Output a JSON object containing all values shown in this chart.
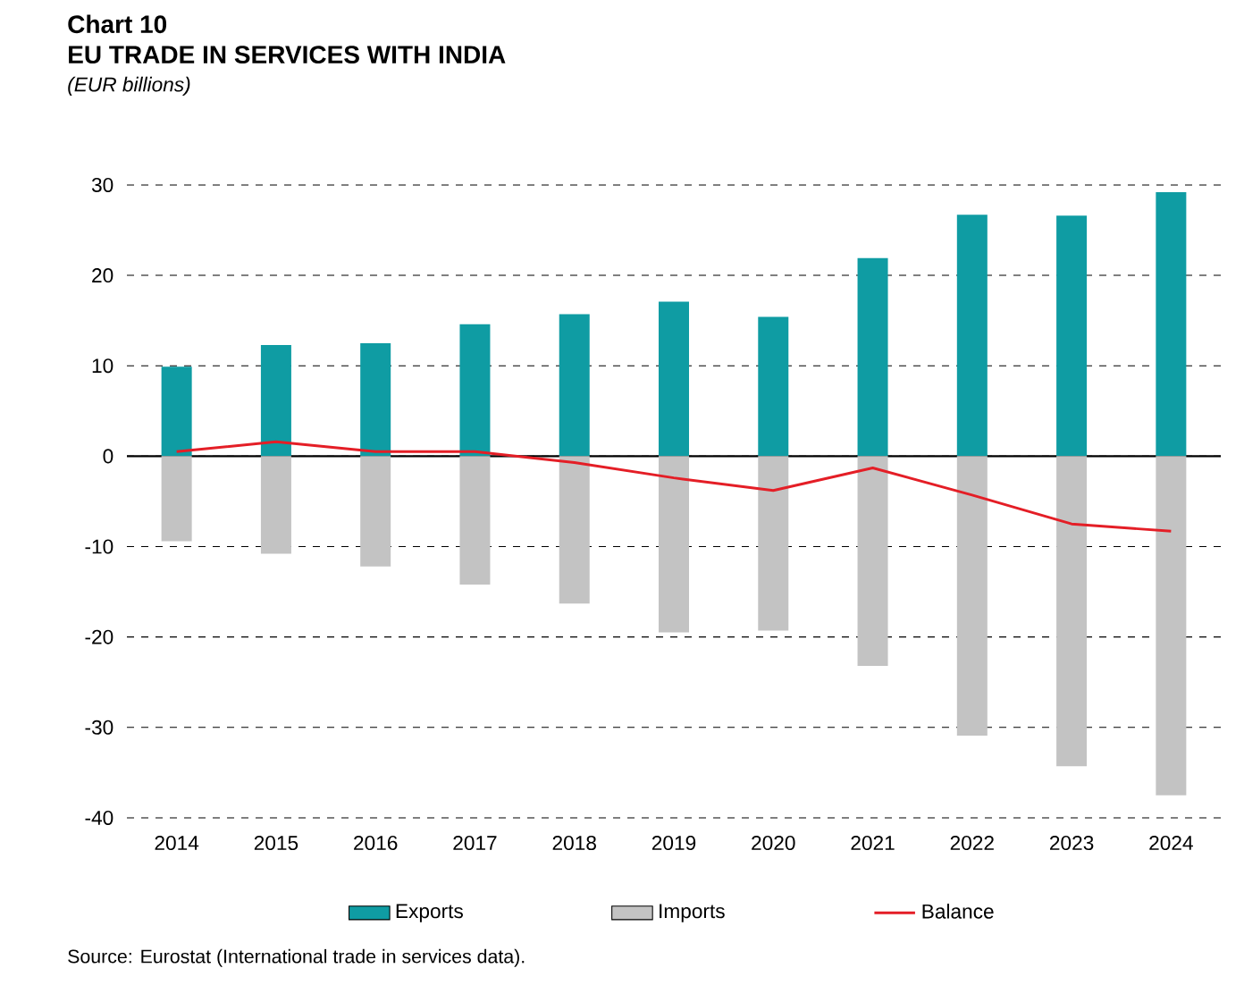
{
  "chart_data": {
    "type": "bar",
    "title": "Chart 10",
    "subtitle": "EU TRADE IN SERVICES WITH INDIA",
    "stacked": true,
    "categories": [
      "2014",
      "2015",
      "2016",
      "2017",
      "2018",
      "2019",
      "2020",
      "2021",
      "2022",
      "2023",
      "2024"
    ],
    "series": [
      {
        "name": "Exports",
        "color": "#0f9ca3",
        "values": [
          9.9,
          12.3,
          12.5,
          14.6,
          15.7,
          17.1,
          15.4,
          21.9,
          26.7,
          26.6,
          29.2
        ]
      },
      {
        "name": "Imports",
        "color": "#c3c3c3",
        "values": [
          -9.4,
          -10.8,
          -12.2,
          -14.2,
          -16.3,
          -19.5,
          -19.3,
          -23.2,
          -30.9,
          -34.3,
          -37.5
        ]
      },
      {
        "name": "Balance",
        "type": "line",
        "color": "#e41e26",
        "values": [
          0.5,
          1.6,
          0.5,
          0.5,
          -0.7,
          -2.4,
          -3.8,
          -1.3,
          -4.3,
          -7.5,
          -8.3
        ]
      }
    ],
    "ylim": [
      -40,
      30
    ],
    "yticks": [
      -40,
      -30,
      -20,
      -10,
      0,
      10,
      20,
      30
    ],
    "grid": "y",
    "legend": "bottom",
    "marker": "none",
    "line_style": "solid",
    "annotations": [
      "(EUR billions)",
      "Source: Eurostat (International trade in services data)."
    ]
  }
}
